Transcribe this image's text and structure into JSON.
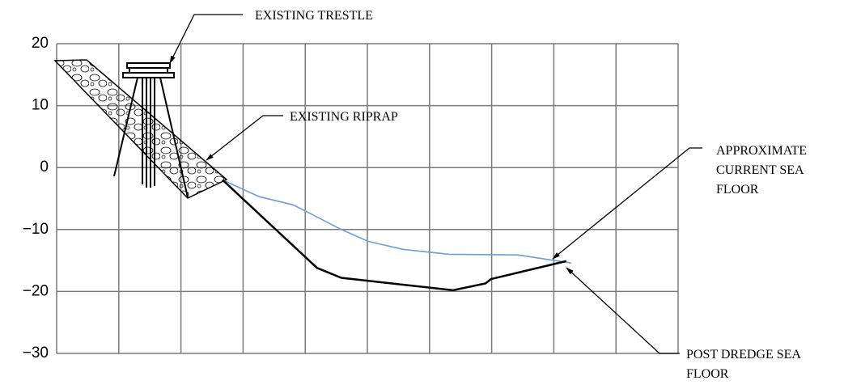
{
  "chart_data": {
    "type": "line",
    "annotations": [
      {
        "lines": [
          "EXISTING TRESTLE"
        ]
      },
      {
        "lines": [
          "EXISTING RIPRAP"
        ]
      },
      {
        "lines": [
          "APPROXIMATE",
          "CURRENT SEA",
          "FLOOR"
        ]
      },
      {
        "lines": [
          "POST DREDGE SEA",
          "FLOOR"
        ]
      }
    ],
    "series": [
      {
        "color": "#6a9fd8",
        "x": [
          2.67,
          3.26,
          3.8,
          4.04,
          4.56,
          5.01,
          5.57,
          6.32,
          7.42,
          7.94,
          8.28
        ],
        "values": [
          -2,
          -4.7,
          -6.0,
          -7.2,
          -9.9,
          -11.9,
          -13.2,
          -14.0,
          -14.1,
          -14.9,
          -15.4
        ]
      },
      {
        "color": "#000000",
        "x": [
          2.67,
          4.19,
          4.58,
          6.38,
          6.9,
          6.99,
          8.2
        ],
        "values": [
          -2,
          -16.2,
          -17.8,
          -19.8,
          -18.7,
          -18.0,
          -15.1
        ]
      }
    ],
    "xlim": [
      0,
      10
    ],
    "xticks": [
      0,
      1,
      2,
      3,
      4,
      5,
      6,
      7,
      8,
      9,
      10
    ],
    "ylim": [
      -30,
      20
    ],
    "yticks": [
      {
        "value": -30,
        "label": "−30"
      },
      {
        "value": -20,
        "label": "−20"
      },
      {
        "value": -10,
        "label": "−10"
      },
      0,
      10,
      20
    ],
    "grid": true
  }
}
